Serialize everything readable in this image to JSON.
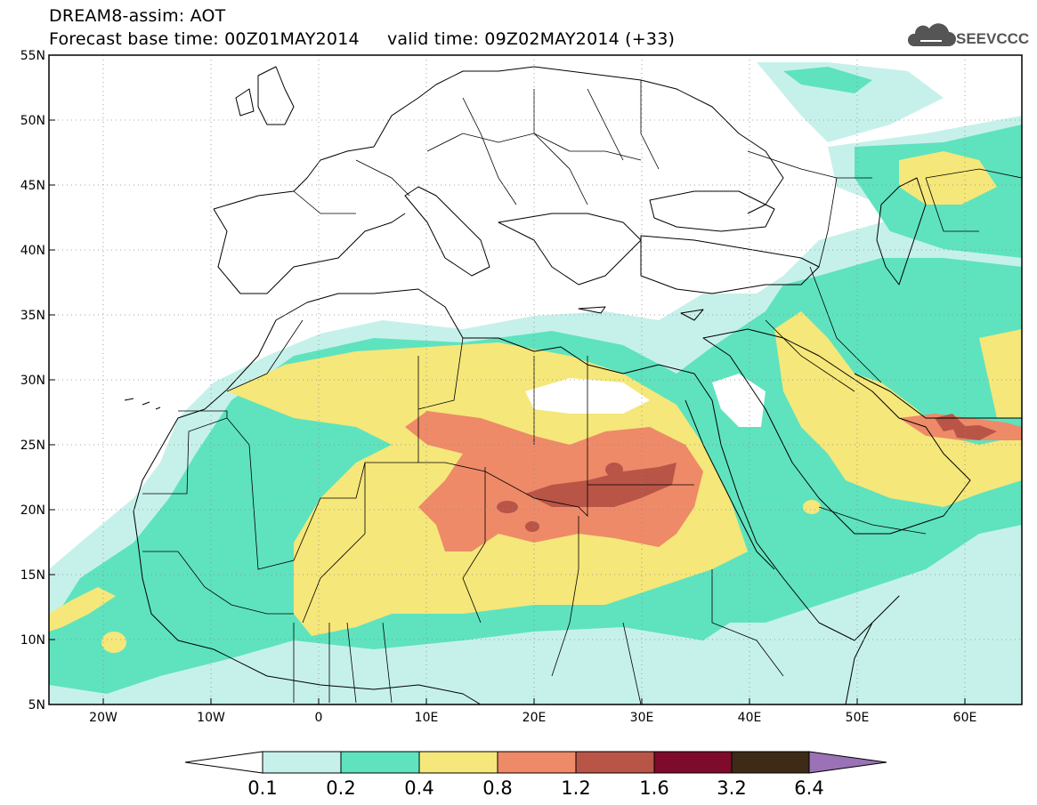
{
  "header": {
    "title_line1": "DREAM8-assim: AOT",
    "title_line2": "Forecast base time: 00Z01MAY2014     valid time: 09Z02MAY2014 (+33)",
    "logo_text": "SEEVCCC",
    "logo_icon": "cloud-icon"
  },
  "map": {
    "projection": "lat-lon",
    "lon_range": [
      -25,
      65
    ],
    "lat_range": [
      5,
      55
    ],
    "lat_labels": [
      "55N",
      "50N",
      "45N",
      "40N",
      "35N",
      "30N",
      "25N",
      "20N",
      "15N",
      "10N",
      "5N"
    ],
    "lon_labels": [
      "20W",
      "10W",
      "0",
      "10E",
      "20E",
      "30E",
      "40E",
      "50E",
      "60E"
    ],
    "gridlines": "dotted"
  },
  "colorbar": {
    "labels": [
      "0.1",
      "0.2",
      "0.4",
      "0.8",
      "1.2",
      "1.6",
      "3.2",
      "6.4"
    ],
    "colors": [
      "#c6f1ea",
      "#5ee3be",
      "#f5e77a",
      "#ee8a68",
      "#b85547",
      "#7e0a2c",
      "#3d2a17",
      "#9a72b5"
    ],
    "low_arrow_color": "#ffffff",
    "high_arrow_color": "#9a72b5"
  },
  "aot_colors": {
    "c01": "#c6f1ea",
    "c02": "#5ee3be",
    "c04": "#f5e77a",
    "c08": "#ee8a68",
    "c12": "#b85547"
  }
}
